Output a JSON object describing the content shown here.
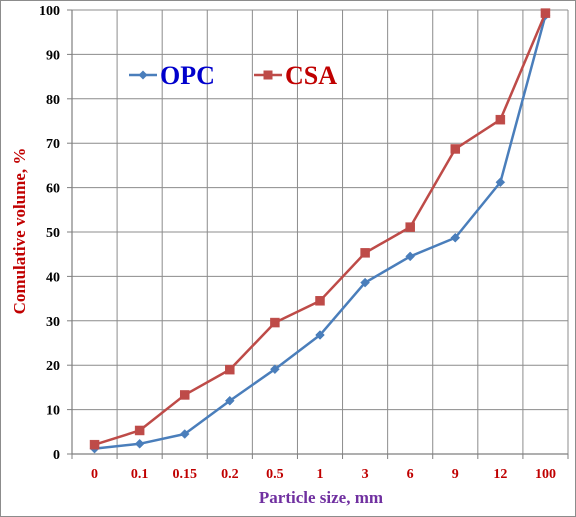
{
  "chart_data": {
    "type": "line",
    "title": "",
    "xlabel": "Particle size, mm",
    "ylabel": "Comulative volume, %",
    "categories": [
      "0",
      "0.1",
      "0.15",
      "0.2",
      "0.5",
      "1",
      "3",
      "6",
      "9",
      "12",
      "100"
    ],
    "ylim": [
      0,
      100
    ],
    "yticks": [
      "0",
      "10",
      "20",
      "30",
      "40",
      "50",
      "60",
      "70",
      "80",
      "90",
      "100"
    ],
    "grid": true,
    "legend_position": "top-left",
    "series": [
      {
        "name": "OPC",
        "color": "#4a7ebb",
        "marker": "diamond",
        "values": [
          1.2,
          2.3,
          4.5,
          12.0,
          19.1,
          26.8,
          38.6,
          44.5,
          48.7,
          61.2,
          98.8
        ]
      },
      {
        "name": "CSA",
        "color": "#be4b48",
        "marker": "square",
        "values": [
          2.1,
          5.3,
          13.3,
          19.0,
          29.6,
          34.5,
          45.3,
          51.1,
          68.7,
          75.3,
          99.3
        ]
      }
    ],
    "label_colors": {
      "xlabel": "#7030a0",
      "ylabel": "#c00000",
      "xticks": "#c00000",
      "yticks": "#000000",
      "legend_opc": "#0000cc",
      "legend_csa": "#c00000"
    }
  }
}
